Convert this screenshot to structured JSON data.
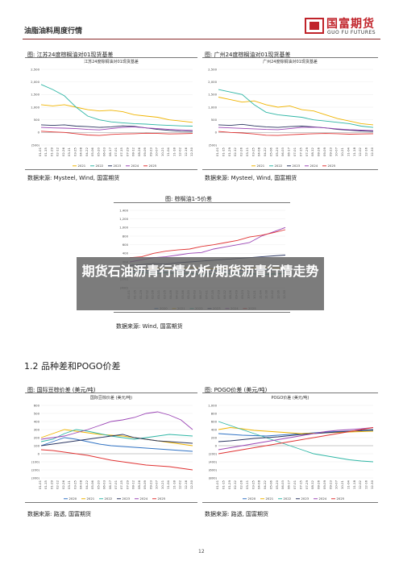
{
  "header": {
    "title": "油脂油料周度行情"
  },
  "logo": {
    "name_cn": "国富期货",
    "name_en": "GUO FU FUTURES",
    "color": "#c0232a"
  },
  "banner": {
    "text": "期货石油沥青行情分析/期货沥青行情走势"
  },
  "section": {
    "heading": "1.2 品种差和POGO价差"
  },
  "page_number": "12",
  "colors": {
    "y2021": "#f0b400",
    "y2022": "#2fb6a5",
    "y2023": "#2a3560",
    "y2024": "#9b45b5",
    "y2025": "#e03232"
  },
  "figures": [
    {
      "caption": "图: 江苏24度棕榈油对01现货基差",
      "inner_title": "江苏24度棕榈油对01现货基差",
      "source": "数据来源: Mysteel, Wind, 国富期货",
      "y_ticks": [
        "2,500",
        "2,000",
        "1,500",
        "1,000",
        "500",
        "0",
        "(500)"
      ],
      "x_ticks": [
        "01-01",
        "01-15",
        "01-29",
        "02-12",
        "02-26",
        "03-11",
        "03-25",
        "04-08",
        "04-22",
        "05-06",
        "05-20",
        "06-03",
        "06-17",
        "07-01",
        "07-15",
        "07-29",
        "08-12",
        "08-26",
        "09-09",
        "09-23",
        "10-07",
        "10-21",
        "11-04",
        "11-18",
        "12-02",
        "12-16",
        "12-30"
      ],
      "legend": [
        "2021",
        "2022",
        "2023",
        "2024",
        "2025"
      ]
    },
    {
      "caption": "图: 广州24度棕榈油对01现货基差",
      "inner_title": "广州24度棕榈油对01现货基差",
      "source": "数据来源: Mysteel, Wind, 国富期货",
      "y_ticks": [
        "2,500",
        "2,000",
        "1,500",
        "1,000",
        "500",
        "0",
        "(500)"
      ],
      "x_ticks": [
        "01-01",
        "01-15",
        "01-29",
        "02-12",
        "02-26",
        "03-11",
        "03-25",
        "04-08",
        "04-22",
        "05-06",
        "05-20",
        "06-03",
        "06-17",
        "07-01",
        "07-15",
        "07-29",
        "08-12",
        "08-26",
        "09-09",
        "09-23",
        "10-07",
        "10-21",
        "11-04",
        "11-18",
        "12-02",
        "12-16",
        "12-30"
      ],
      "legend": [
        "2021",
        "2022",
        "2023",
        "2024",
        "2025"
      ]
    },
    {
      "caption": "图: 棕榈油1-5价差",
      "inner_title": "",
      "source": "数据来源: Wind, 国富期货",
      "y_ticks": [
        "1,400",
        "1,200",
        "1,000",
        "800",
        "600",
        "400",
        "200",
        "0",
        "(200)",
        "(400)"
      ],
      "x_ticks": [
        "01-01",
        "01-15",
        "01-29",
        "02-12",
        "02-26",
        "03-11",
        "03-25",
        "04-08",
        "04-22",
        "05-06",
        "05-20",
        "06-03",
        "06-17",
        "07-01",
        "07-15",
        "07-29",
        "08-12",
        "08-26",
        "09-09",
        "09-23",
        "10-07",
        "10-21",
        "11-04",
        "11-18",
        "12-02",
        "12-16",
        "12-30"
      ],
      "legend": [
        "2020",
        "2021",
        "2022",
        "2023",
        "2024",
        "2025"
      ]
    },
    {
      "caption": "图: 国际豆棕价差 (美元/吨)",
      "inner_title": "国际豆棕价差 (美元/吨)",
      "source": "数据来源: 路透, 国富期货",
      "y_ticks": [
        "600",
        "500",
        "400",
        "300",
        "200",
        "100",
        "0",
        "(100)",
        "(200)",
        "(300)"
      ],
      "x_ticks": [
        "01-01",
        "01-15",
        "01-29",
        "02-12",
        "02-26",
        "03-11",
        "03-25",
        "04-08",
        "04-22",
        "05-06",
        "05-20",
        "06-03",
        "06-17",
        "07-01",
        "07-15",
        "07-29",
        "08-12",
        "08-26",
        "09-09",
        "09-23",
        "10-07",
        "10-21",
        "11-04",
        "11-18",
        "12-02",
        "12-16",
        "12-30"
      ],
      "legend": [
        "2020",
        "2021",
        "2022",
        "2023",
        "2024",
        "2025"
      ]
    },
    {
      "caption": "图: POGO价差 (美元/吨)",
      "inner_title": "POGO价差 (美元/吨)",
      "source": "数据来源: 路透, 国富期货",
      "y_ticks": [
        "1,000",
        "800",
        "600",
        "400",
        "200",
        "0",
        "(200)",
        "(400)",
        "(600)",
        "(800)"
      ],
      "x_ticks": [
        "01-01",
        "01-15",
        "01-29",
        "02-12",
        "02-26",
        "03-11",
        "03-25",
        "04-08",
        "04-22",
        "05-06",
        "05-20",
        "06-03",
        "06-17",
        "07-01",
        "07-15",
        "07-29",
        "08-12",
        "08-26",
        "09-09",
        "09-23",
        "10-07",
        "10-21",
        "11-04",
        "11-18",
        "12-02",
        "12-16",
        "12-30"
      ],
      "legend": [
        "2020",
        "2021",
        "2022",
        "2023",
        "2024",
        "2025"
      ]
    }
  ],
  "chart_data": [
    {
      "type": "line",
      "title": "江苏24度棕榈油对01现货基差",
      "ylim": [
        -500,
        2500
      ],
      "x": [
        0,
        2,
        4,
        6,
        8,
        10,
        12,
        14,
        16,
        18,
        20,
        22,
        24,
        26
      ],
      "series": [
        {
          "name": "2021",
          "values": [
            1100,
            1050,
            1100,
            1000,
            900,
            850,
            880,
            820,
            700,
            650,
            600,
            500,
            450,
            400
          ]
        },
        {
          "name": "2022",
          "values": [
            1900,
            1700,
            1450,
            1000,
            650,
            500,
            420,
            380,
            350,
            330,
            300,
            280,
            260,
            250
          ]
        },
        {
          "name": "2023",
          "values": [
            300,
            280,
            300,
            250,
            230,
            200,
            220,
            260,
            240,
            180,
            120,
            80,
            50,
            40
          ]
        },
        {
          "name": "2024",
          "values": [
            200,
            180,
            170,
            150,
            120,
            100,
            150,
            200,
            220,
            180,
            150,
            120,
            100,
            80
          ]
        },
        {
          "name": "2025",
          "values": [
            50,
            20,
            0,
            -50,
            -100,
            -120,
            -80,
            -60,
            -50,
            -30,
            -40,
            -60,
            -50,
            -40
          ]
        }
      ]
    },
    {
      "type": "line",
      "title": "广州24度棕榈油对01现货基差",
      "ylim": [
        -500,
        2500
      ],
      "x": [
        0,
        2,
        4,
        6,
        8,
        10,
        12,
        14,
        16,
        18,
        20,
        22,
        24,
        26
      ],
      "series": [
        {
          "name": "2021",
          "values": [
            1400,
            1300,
            1200,
            1250,
            1100,
            1000,
            1050,
            900,
            850,
            700,
            550,
            450,
            350,
            300
          ]
        },
        {
          "name": "2022",
          "values": [
            1700,
            1600,
            1500,
            1100,
            800,
            700,
            650,
            600,
            500,
            450,
            400,
            350,
            250,
            200
          ]
        },
        {
          "name": "2023",
          "values": [
            300,
            280,
            320,
            260,
            220,
            200,
            230,
            250,
            220,
            180,
            120,
            90,
            60,
            40
          ]
        },
        {
          "name": "2024",
          "values": [
            200,
            180,
            160,
            140,
            120,
            110,
            150,
            200,
            210,
            180,
            140,
            110,
            90,
            70
          ]
        },
        {
          "name": "2025",
          "values": [
            40,
            0,
            -20,
            -60,
            -110,
            -120,
            -90,
            -70,
            -50,
            -40,
            -50,
            -70,
            -60,
            -50
          ]
        }
      ]
    },
    {
      "type": "line",
      "title": "",
      "ylim": [
        -400,
        1400
      ],
      "x": [
        0,
        2,
        4,
        6,
        8,
        10,
        12,
        14,
        16,
        18,
        20,
        22,
        24,
        26
      ],
      "series": [
        {
          "name": "2020",
          "values": [
            10,
            0,
            -10,
            0,
            10,
            20,
            10,
            0,
            -10,
            0,
            10,
            20,
            10,
            0
          ]
        },
        {
          "name": "2021",
          "values": [
            40,
            20,
            60,
            50,
            30,
            70,
            50,
            40,
            60,
            50,
            40,
            80,
            60,
            50
          ]
        },
        {
          "name": "2022",
          "values": [
            -60,
            -40,
            -80,
            -50,
            -70,
            -60,
            -90,
            -70,
            -60,
            -80,
            -70,
            -90,
            -80,
            -70
          ]
        },
        {
          "name": "2023",
          "values": [
            120,
            140,
            160,
            150,
            180,
            200,
            220,
            240,
            260,
            280,
            300,
            320,
            340,
            360
          ]
        },
        {
          "name": "2024",
          "values": [
            200,
            250,
            300,
            320,
            360,
            400,
            420,
            500,
            550,
            600,
            650,
            800,
            900,
            1000
          ]
        },
        {
          "name": "2025",
          "values": [
            300,
            320,
            400,
            450,
            480,
            500,
            560,
            600,
            650,
            700,
            780,
            820,
            880,
            950
          ]
        }
      ]
    },
    {
      "type": "line",
      "title": "国际豆棕价差 (美元/吨)",
      "ylim": [
        -300,
        600
      ],
      "x": [
        0,
        2,
        4,
        6,
        8,
        10,
        12,
        14,
        16,
        18,
        20,
        22,
        24,
        26
      ],
      "series": [
        {
          "name": "2020",
          "values": [
            100,
            150,
            200,
            180,
            150,
            120,
            100,
            90,
            80,
            70,
            60,
            50,
            40,
            30
          ]
        },
        {
          "name": "2021",
          "values": [
            200,
            250,
            300,
            280,
            260,
            240,
            230,
            220,
            200,
            180,
            160,
            140,
            120,
            100
          ]
        },
        {
          "name": "2022",
          "values": [
            150,
            180,
            250,
            300,
            280,
            250,
            220,
            200,
            180,
            200,
            220,
            240,
            230,
            220
          ]
        },
        {
          "name": "2023",
          "values": [
            100,
            120,
            140,
            160,
            180,
            200,
            220,
            240,
            200,
            180,
            160,
            150,
            140,
            130
          ]
        },
        {
          "name": "2024",
          "values": [
            180,
            200,
            220,
            260,
            300,
            350,
            400,
            420,
            450,
            500,
            520,
            480,
            420,
            300
          ]
        },
        {
          "name": "2025",
          "values": [
            50,
            40,
            20,
            0,
            -20,
            -50,
            -80,
            -100,
            -120,
            -140,
            -150,
            -160,
            -180,
            -200
          ]
        }
      ]
    },
    {
      "type": "line",
      "title": "POGO价差 (美元/吨)",
      "ylim": [
        -800,
        1000
      ],
      "x": [
        0,
        2,
        4,
        6,
        8,
        10,
        12,
        14,
        16,
        18,
        20,
        22,
        24,
        26
      ],
      "series": [
        {
          "name": "2020",
          "values": [
            300,
            280,
            260,
            250,
            240,
            260,
            280,
            300,
            320,
            340,
            350,
            360,
            370,
            380
          ]
        },
        {
          "name": "2021",
          "values": [
            400,
            450,
            420,
            380,
            360,
            340,
            320,
            300,
            310,
            320,
            330,
            340,
            350,
            360
          ]
        },
        {
          "name": "2022",
          "values": [
            600,
            500,
            400,
            300,
            200,
            100,
            0,
            -100,
            -200,
            -250,
            -300,
            -350,
            -380,
            -400
          ]
        },
        {
          "name": "2023",
          "values": [
            100,
            120,
            150,
            180,
            200,
            220,
            250,
            280,
            300,
            320,
            340,
            360,
            380,
            400
          ]
        },
        {
          "name": "2024",
          "values": [
            -100,
            -50,
            0,
            50,
            100,
            150,
            200,
            250,
            300,
            350,
            380,
            400,
            420,
            450
          ]
        },
        {
          "name": "2025",
          "values": [
            -200,
            -150,
            -100,
            -50,
            0,
            50,
            100,
            150,
            200,
            250,
            300,
            350,
            400,
            450
          ]
        }
      ]
    }
  ]
}
